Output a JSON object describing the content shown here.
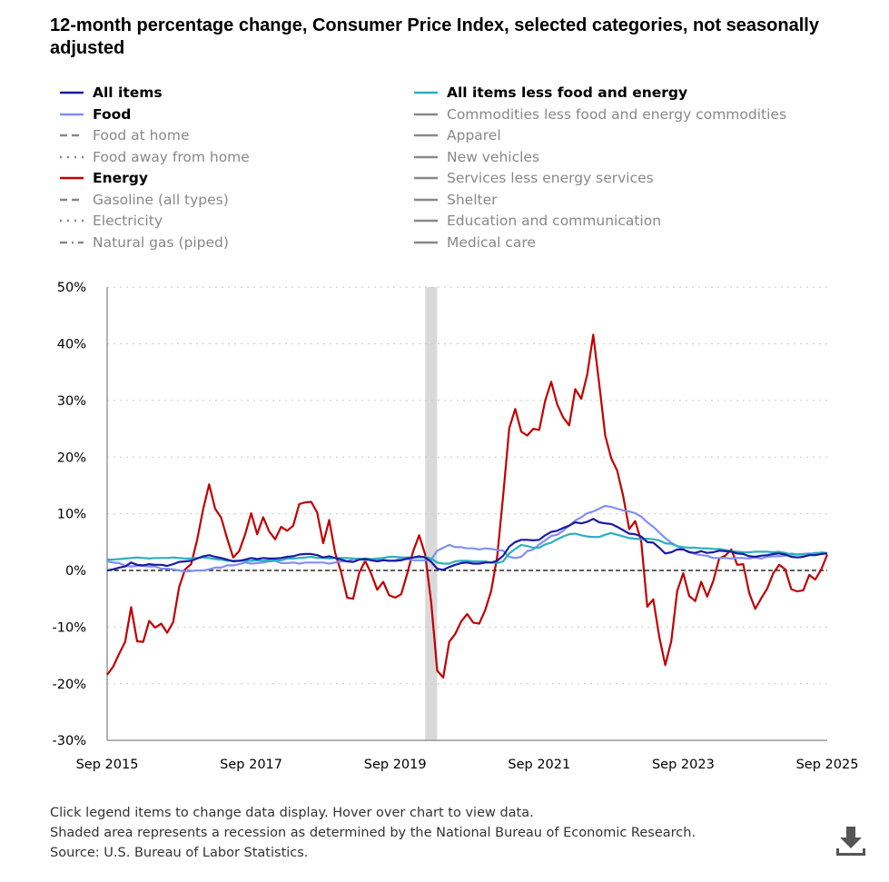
{
  "title": "12-month percentage change, Consumer Price Index, selected categories, not seasonally adjusted",
  "legend": [
    {
      "label": "All items",
      "color": "#1a1aa0",
      "dash": "",
      "active": true
    },
    {
      "label": "Food",
      "color": "#7f8ff5",
      "dash": "",
      "active": true
    },
    {
      "label": "Food at home",
      "color": "#555",
      "dash": "8,5",
      "active": false
    },
    {
      "label": "Food away from home",
      "color": "#888",
      "dash": "2,6",
      "active": false
    },
    {
      "label": "Energy",
      "color": "#c00000",
      "dash": "",
      "active": true
    },
    {
      "label": "Gasoline (all types)",
      "color": "#555",
      "dash": "8,5",
      "active": false
    },
    {
      "label": "Electricity",
      "color": "#888",
      "dash": "2,6",
      "active": false
    },
    {
      "label": "Natural gas (piped)",
      "color": "#555",
      "dash": "8,5,2,5",
      "active": false
    },
    {
      "label": "All items less food and energy",
      "color": "#2ab0c0",
      "dash": "",
      "active": true
    },
    {
      "label": "Commodities less food and energy commodities",
      "color": "#888",
      "dash": "",
      "active": false
    },
    {
      "label": "Apparel",
      "color": "#888",
      "dash": "",
      "active": false
    },
    {
      "label": "New vehicles",
      "color": "#888",
      "dash": "",
      "active": false
    },
    {
      "label": "Services less energy services",
      "color": "#888",
      "dash": "",
      "active": false
    },
    {
      "label": "Shelter",
      "color": "#888",
      "dash": "",
      "active": false
    },
    {
      "label": "Education and communication",
      "color": "#888",
      "dash": "",
      "active": false
    },
    {
      "label": "Medical care",
      "color": "#888",
      "dash": "",
      "active": false
    }
  ],
  "chart_data": {
    "type": "line",
    "title": "12-month percentage change, Consumer Price Index, selected categories, not seasonally adjusted",
    "x_start": "Sep 2015",
    "x_end": "Sep 2025",
    "x_frequency": "monthly",
    "x_ticks": [
      "Sep 2015",
      "Sep 2017",
      "Sep 2019",
      "Sep 2021",
      "Sep 2023",
      "Sep 2025"
    ],
    "y_ticks": [
      "50%",
      "40%",
      "30%",
      "20%",
      "10%",
      "0%",
      "-10%",
      "-20%",
      "-30%"
    ],
    "ylim": [
      -30,
      50
    ],
    "grid": "horizontal dotted",
    "recession_shading": {
      "start": "Feb 2020",
      "end": "Apr 2020"
    },
    "series": [
      {
        "name": "Energy",
        "color": "#c00000",
        "values": [
          -18.4,
          -17.0,
          -14.7,
          -12.6,
          -6.5,
          -12.5,
          -12.6,
          -8.9,
          -10.1,
          -9.4,
          -11.0,
          -9.1,
          -2.9,
          0.2,
          1.1,
          5.4,
          10.8,
          15.2,
          10.9,
          9.3,
          5.6,
          2.3,
          3.4,
          6.4,
          10.1,
          6.4,
          9.4,
          6.9,
          5.5,
          7.7,
          7.0,
          7.9,
          11.7,
          12.0,
          12.1,
          10.2,
          4.8,
          8.9,
          3.1,
          -0.3,
          -4.8,
          -5.0,
          -0.4,
          1.7,
          -0.6,
          -3.4,
          -2.0,
          -4.4,
          -4.8,
          -4.2,
          -0.6,
          3.4,
          6.2,
          2.8,
          -5.7,
          -17.7,
          -18.9,
          -12.6,
          -11.2,
          -9.0,
          -7.7,
          -9.2,
          -9.4,
          -7.0,
          -3.6,
          2.4,
          13.2,
          25.1,
          28.5,
          24.5,
          23.8,
          25.0,
          24.8,
          30.0,
          33.3,
          29.3,
          27.0,
          25.6,
          32.0,
          30.3,
          34.6,
          41.6,
          32.9,
          23.8,
          19.8,
          17.6,
          13.1,
          7.3,
          8.7,
          5.2,
          -6.4,
          -5.1,
          -11.7,
          -16.7,
          -12.5,
          -3.6,
          -0.5,
          -4.5,
          -5.4,
          -2.0,
          -4.6,
          -1.9,
          2.1,
          2.6,
          3.7,
          1.0,
          1.1,
          -4.0,
          -6.8,
          -4.9,
          -3.2,
          -0.5,
          1.0,
          0.2,
          -3.3,
          -3.7,
          -3.5,
          -0.8,
          -1.6,
          0.2,
          2.8
        ]
      },
      {
        "name": "Food",
        "color": "#7f8ff5",
        "values": [
          1.6,
          1.4,
          1.3,
          0.8,
          0.7,
          0.8,
          0.8,
          0.7,
          0.7,
          0.3,
          0.3,
          0.2,
          0.0,
          -0.2,
          -0.1,
          0.0,
          0.0,
          0.2,
          0.5,
          0.5,
          0.9,
          0.9,
          1.1,
          1.4,
          1.2,
          1.3,
          1.4,
          1.6,
          1.7,
          1.3,
          1.3,
          1.4,
          1.2,
          1.4,
          1.4,
          1.4,
          1.4,
          1.2,
          1.4,
          1.6,
          1.6,
          2.0,
          2.1,
          1.8,
          2.0,
          1.9,
          1.9,
          1.7,
          1.8,
          2.1,
          2.0,
          1.8,
          1.8,
          1.8,
          1.9,
          3.5,
          4.0,
          4.5,
          4.1,
          4.1,
          3.9,
          3.9,
          3.7,
          3.9,
          3.8,
          3.6,
          3.5,
          2.4,
          2.2,
          2.4,
          3.4,
          3.7,
          4.6,
          5.3,
          6.1,
          6.3,
          7.0,
          7.9,
          8.8,
          9.4,
          10.1,
          10.4,
          10.9,
          11.4,
          11.2,
          10.9,
          10.6,
          10.4,
          10.1,
          9.5,
          8.5,
          7.7,
          6.7,
          5.7,
          4.9,
          4.3,
          3.7,
          3.3,
          2.9,
          2.7,
          2.6,
          2.2,
          2.2,
          2.2,
          2.1,
          2.2,
          2.2,
          2.1,
          2.3,
          2.1,
          2.4,
          2.5,
          2.5,
          2.6,
          3.0,
          2.8,
          2.9,
          3.0,
          2.9,
          3.2,
          3.1
        ]
      },
      {
        "name": "All items less food and energy",
        "color": "#2ab0c0",
        "values": [
          1.9,
          1.9,
          2.0,
          2.1,
          2.2,
          2.3,
          2.2,
          2.1,
          2.2,
          2.2,
          2.2,
          2.3,
          2.2,
          2.1,
          2.1,
          2.2,
          2.3,
          2.2,
          2.0,
          1.9,
          1.7,
          1.7,
          1.7,
          1.7,
          1.7,
          1.8,
          1.7,
          1.8,
          1.8,
          1.8,
          2.1,
          2.1,
          2.2,
          2.3,
          2.4,
          2.2,
          2.2,
          2.1,
          2.2,
          2.2,
          2.2,
          2.1,
          2.0,
          2.1,
          2.0,
          2.1,
          2.2,
          2.4,
          2.4,
          2.3,
          2.3,
          2.3,
          2.3,
          2.4,
          2.1,
          1.4,
          1.2,
          1.2,
          1.6,
          1.7,
          1.7,
          1.6,
          1.6,
          1.6,
          1.4,
          1.3,
          1.6,
          3.0,
          3.8,
          4.5,
          4.3,
          4.0,
          4.0,
          4.6,
          4.9,
          5.5,
          6.0,
          6.4,
          6.5,
          6.2,
          6.0,
          5.9,
          5.9,
          6.3,
          6.6,
          6.3,
          6.0,
          5.7,
          5.6,
          5.5,
          5.6,
          5.5,
          5.3,
          4.8,
          4.7,
          4.3,
          4.1,
          4.0,
          4.0,
          3.9,
          3.9,
          3.8,
          3.8,
          3.6,
          3.4,
          3.3,
          3.2,
          3.2,
          3.3,
          3.3,
          3.3,
          3.2,
          3.3,
          3.1,
          2.8,
          2.8,
          2.8,
          2.9,
          3.1,
          3.1,
          3.0
        ]
      },
      {
        "name": "All items",
        "color": "#1a1aa0",
        "values": [
          0.0,
          0.2,
          0.5,
          0.7,
          1.4,
          1.0,
          0.9,
          1.1,
          1.0,
          1.0,
          0.8,
          1.1,
          1.5,
          1.6,
          1.7,
          2.1,
          2.5,
          2.7,
          2.4,
          2.2,
          1.9,
          1.6,
          1.7,
          1.9,
          2.2,
          2.0,
          2.2,
          2.1,
          2.1,
          2.2,
          2.4,
          2.5,
          2.8,
          2.9,
          2.9,
          2.7,
          2.3,
          2.5,
          2.2,
          1.9,
          1.6,
          1.5,
          1.9,
          2.0,
          1.8,
          1.6,
          1.8,
          1.7,
          1.7,
          1.8,
          2.1,
          2.3,
          2.5,
          2.3,
          1.5,
          0.3,
          0.1,
          0.6,
          1.0,
          1.3,
          1.4,
          1.2,
          1.2,
          1.4,
          1.4,
          1.7,
          2.6,
          4.2,
          5.0,
          5.4,
          5.4,
          5.3,
          5.4,
          6.2,
          6.8,
          7.0,
          7.5,
          7.9,
          8.5,
          8.3,
          8.6,
          9.1,
          8.5,
          8.3,
          8.2,
          7.7,
          7.1,
          6.5,
          6.4,
          6.0,
          5.0,
          4.9,
          4.0,
          3.0,
          3.2,
          3.7,
          3.7,
          3.2,
          3.1,
          3.4,
          3.1,
          3.2,
          3.5,
          3.4,
          3.3,
          3.0,
          2.9,
          2.5,
          2.4,
          2.6,
          2.7,
          2.9,
          3.0,
          2.8,
          2.4,
          2.3,
          2.4,
          2.7,
          2.7,
          2.9,
          3.0
        ]
      }
    ]
  },
  "footer": {
    "line1": "Click legend items to change data display. Hover over chart to view data.",
    "line2": "Shaded area represents a recession as determined by the National Bureau of Economic Research.",
    "line3": "Source: U.S. Bureau of Labor Statistics."
  },
  "download_icon": "download-icon"
}
